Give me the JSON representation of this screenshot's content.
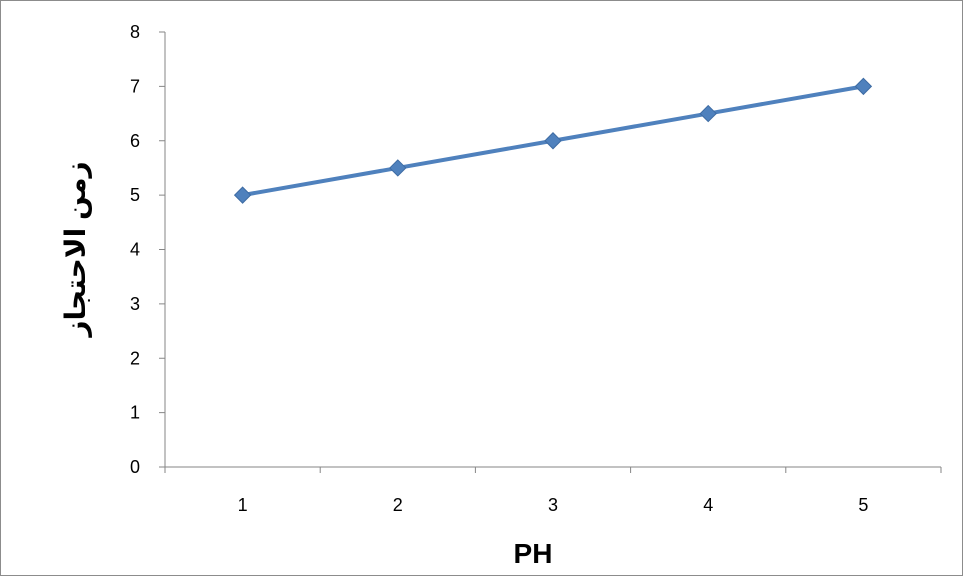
{
  "chart_data": {
    "type": "line",
    "title": "",
    "xlabel": "PH",
    "ylabel": "زمن الاحتجاز",
    "categories": [
      "1",
      "2",
      "3",
      "4",
      "5"
    ],
    "series": [
      {
        "values": [
          5,
          5.5,
          6,
          6.5,
          7
        ],
        "color": "#4f81bd",
        "marker": "diamond"
      }
    ],
    "ylim": [
      0,
      8
    ],
    "yticks": [
      "0",
      "1",
      "2",
      "3",
      "4",
      "5",
      "6",
      "7",
      "8"
    ],
    "grid": false,
    "legend": "none"
  }
}
